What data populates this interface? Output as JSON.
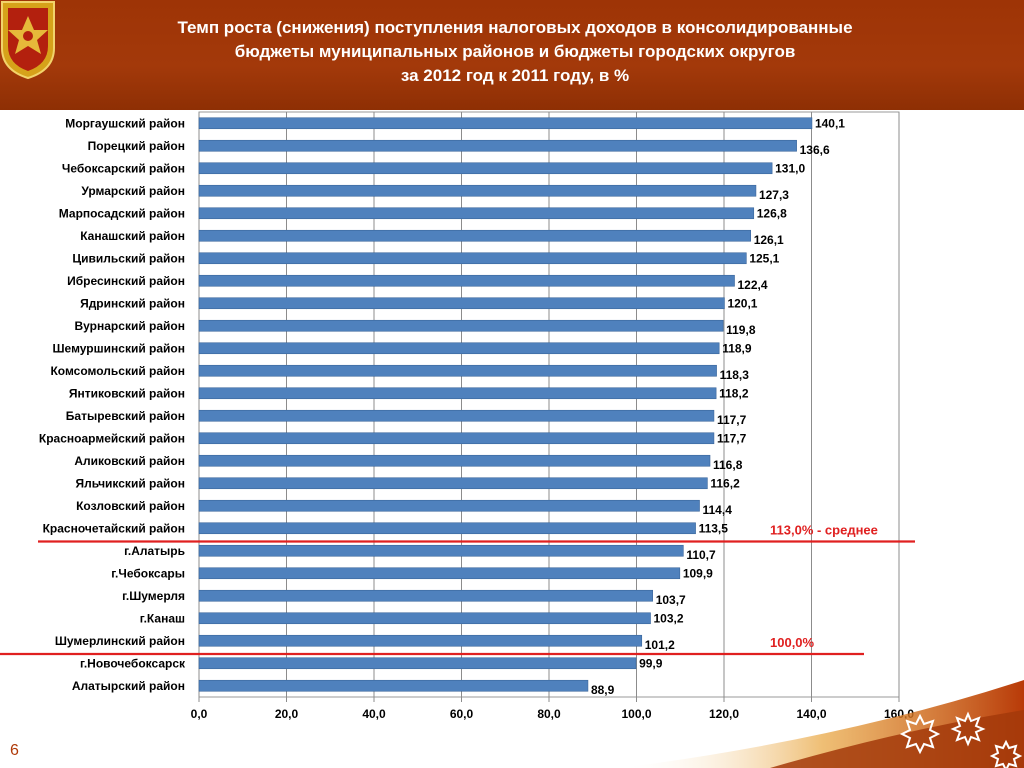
{
  "header": {
    "title_line1": "Темп роста (снижения) поступления налоговых доходов в консолидированные",
    "title_line2": "бюджеты муниципальных районов и бюджеты городских округов",
    "title_line3": "за 2012 год к 2011 году, в %",
    "colors": {
      "background": "#a3390a",
      "text": "#ffffff"
    }
  },
  "emblem": {
    "icon": "chuvashia-emblem-icon"
  },
  "chart_data": {
    "type": "bar",
    "orientation": "horizontal",
    "categories": [
      "Моргаушский  район",
      "Порецкий район",
      "Чебоксарский район",
      "Урмарский район",
      "Марпосадский район",
      "Канашский район",
      "Цивильский район",
      "Ибресинский район",
      "Ядринский район",
      "Вурнарский район",
      "Шемуршинский  район",
      "Комсомольский  район",
      "Янтиковский район",
      "Батыревский район",
      "Красноармейский  район",
      "Аликовский район",
      "Яльчикский район",
      "Козловский район",
      "Красночетайский район",
      "г.Алатырь",
      "г.Чебоксары",
      "г.Шумерля",
      "г.Канаш",
      "Шумерлинский  район",
      "г.Новочебоксарск",
      "Алатырский район"
    ],
    "values": [
      140.1,
      136.6,
      131.0,
      127.3,
      126.8,
      126.1,
      125.1,
      122.4,
      120.1,
      119.8,
      118.9,
      118.3,
      118.2,
      117.7,
      117.7,
      116.8,
      116.2,
      114.4,
      113.5,
      110.7,
      109.9,
      103.7,
      103.2,
      101.2,
      99.9,
      88.9
    ],
    "value_labels": [
      "140,1",
      "136,6",
      "131,0",
      "127,3",
      "126,8",
      "126,1",
      "125,1",
      "122,4",
      "120,1",
      "119,8",
      "118,9",
      "118,3",
      "118,2",
      "117,7",
      "117,7",
      "116,8",
      "116,2",
      "114,4",
      "113,5",
      "110,7",
      "109,9",
      "103,7",
      "103,2",
      "101,2",
      "99,9",
      "88,9"
    ],
    "xlim": [
      0,
      160
    ],
    "x_ticks": [
      0,
      20,
      40,
      60,
      80,
      100,
      120,
      140,
      160
    ],
    "x_tick_labels": [
      "0,0",
      "20,0",
      "40,0",
      "60,0",
      "80,0",
      "100,0",
      "120,0",
      "140,0",
      "160,0"
    ],
    "grid": "vertical",
    "bar_color": "#4f81bd",
    "reference_lines": [
      {
        "label": "113,0% - среднее",
        "color": "#e02020"
      },
      {
        "label": "100,0%",
        "color": "#e02020"
      }
    ]
  },
  "page": {
    "number": "6"
  }
}
